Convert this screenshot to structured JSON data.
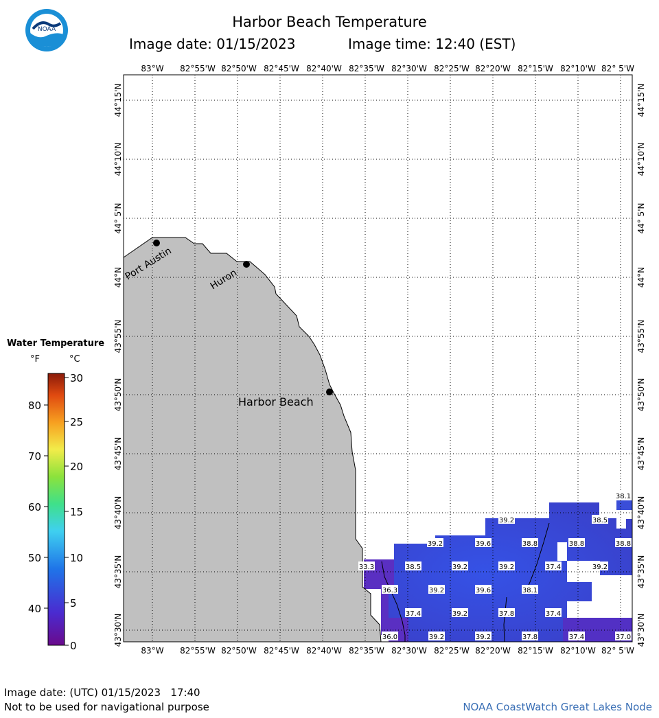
{
  "header": {
    "title": "Harbor Beach Temperature",
    "image_date": "Image date: 01/15/2023",
    "image_time": "Image time: 12:40 (EST)"
  },
  "logo": {
    "text": "NOAA",
    "icon": "noaa-logo-icon"
  },
  "lon_labels": [
    "83°W",
    "82°55'W",
    "82°50'W",
    "82°45'W",
    "82°40'W",
    "82°35'W",
    "82°30'W",
    "82°25'W",
    "82°20'W",
    "82°15'W",
    "82°10'W",
    "82° 5'W"
  ],
  "lat_labels": [
    "44°15'N",
    "44°10'N",
    "44° 5'N",
    "44°N",
    "43°55'N",
    "43°50'N",
    "43°45'N",
    "43°40'N",
    "43°35'N",
    "43°30'N"
  ],
  "places": [
    "Port Austin",
    "Huron",
    "Harbor Beach"
  ],
  "temp_labels": [
    "38.1",
    "39.2",
    "38.5",
    "39.2",
    "39.6",
    "38.8",
    "38.8",
    "38.8",
    "33.3",
    "38.5",
    "39.2",
    "39.2",
    "37.4",
    "39.2",
    "36.3",
    "39.2",
    "39.6",
    "38.1",
    "37.4",
    "39.2",
    "37.8",
    "37.4",
    "36.0",
    "39.2",
    "39.2",
    "37.8",
    "37.4",
    "37.0"
  ],
  "legend": {
    "title": "Water Temperature",
    "unit_f": "°F",
    "unit_c": "°C",
    "f_ticks": [
      "80",
      "70",
      "60",
      "50",
      "40"
    ],
    "c_ticks": [
      "30",
      "25",
      "20",
      "15",
      "10",
      "5",
      "0"
    ]
  },
  "footer": {
    "utc_date": "Image date: (UTC) 01/15/2023   17:40",
    "disclaimer": "Not to be used for navigational purpose",
    "credit": "NOAA CoastWatch Great Lakes Node"
  },
  "colors": {
    "land": "#c0c0c0",
    "water_warm": "#3a4ed8",
    "water_cool": "#5a2fc2",
    "credit": "#3a6fb5"
  }
}
